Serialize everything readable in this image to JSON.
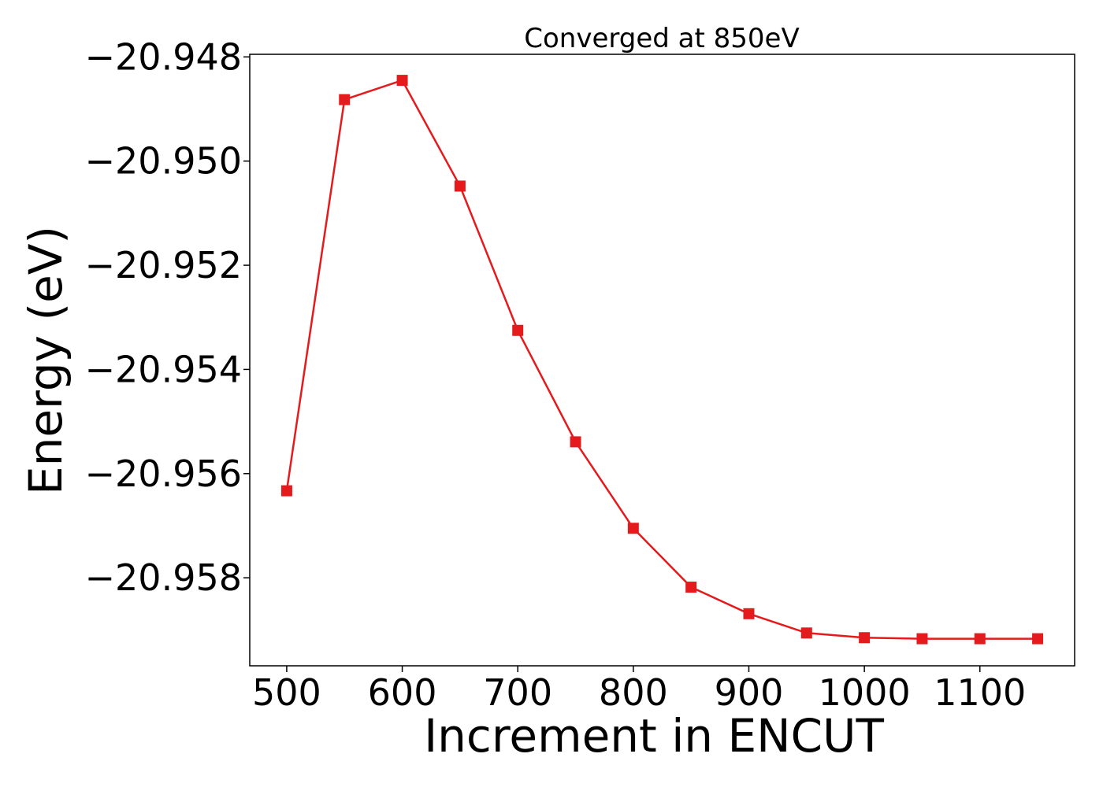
{
  "chart_data": {
    "type": "line",
    "title": "Converged at 850eV",
    "xlabel": "Increment in ENCUT",
    "ylabel": "Energy (eV)",
    "xlim": [
      468,
      1182
    ],
    "ylim": [
      -20.95969,
      -20.94795
    ],
    "x_ticks": [
      500,
      600,
      700,
      800,
      900,
      1000,
      1100
    ],
    "x_tick_labels": [
      "500",
      "600",
      "700",
      "800",
      "900",
      "1000",
      "1100"
    ],
    "y_ticks": [
      -20.948,
      -20.95,
      -20.952,
      -20.954,
      -20.956,
      -20.958
    ],
    "y_tick_labels": [
      "−20.948",
      "−20.950",
      "−20.952",
      "−20.954",
      "−20.956",
      "−20.958"
    ],
    "grid": false,
    "series": [
      {
        "color": "#e41a1c",
        "marker": "square",
        "x": [
          500,
          550,
          600,
          650,
          700,
          750,
          800,
          850,
          900,
          950,
          1000,
          1050,
          1100,
          1150
        ],
        "y": [
          -20.95633,
          -20.94882,
          -20.94845,
          -20.95048,
          -20.95325,
          -20.95539,
          -20.95705,
          -20.95818,
          -20.95869,
          -20.95906,
          -20.95915,
          -20.95917,
          -20.95917,
          -20.95917
        ]
      }
    ]
  }
}
